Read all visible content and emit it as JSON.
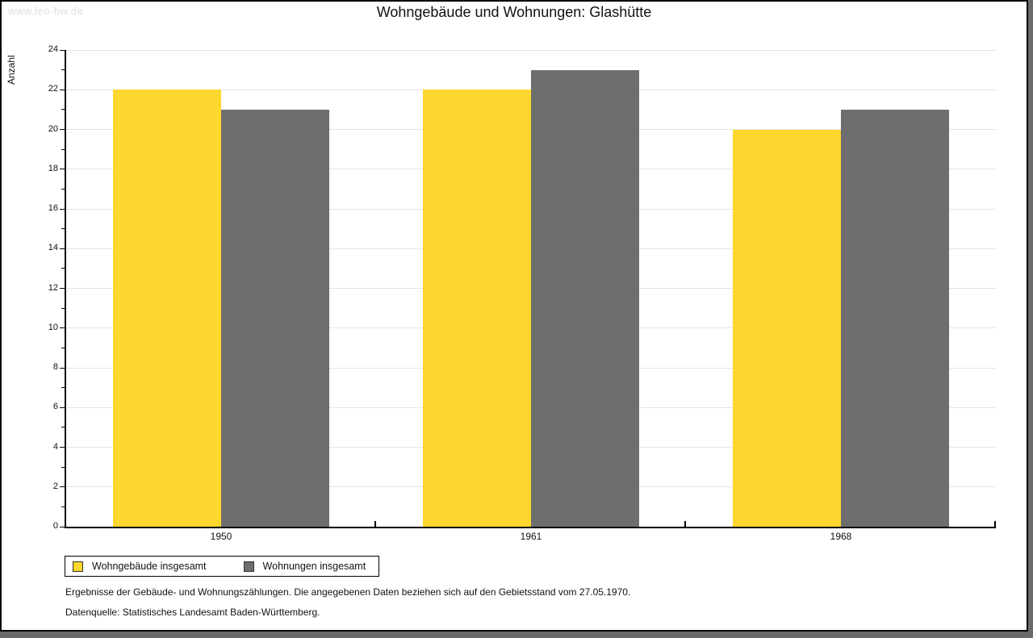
{
  "page": {
    "watermark": "www.leo-bw.de",
    "title": "Wohngebäude und Wohnungen: Glashütte",
    "background_color": "#6B6B6B",
    "canvas_color": "#FFFFFF"
  },
  "chart_data": {
    "type": "bar",
    "title": "Wohngebäude und Wohnungen: Glashütte",
    "categories": [
      "1950",
      "1961",
      "1968"
    ],
    "series": [
      {
        "name": "Wohngebäude insgesamt",
        "color": "#FDD62E",
        "values": [
          22,
          22,
          20
        ]
      },
      {
        "name": "Wohnungen insgesamt",
        "color": "#6E6E6E",
        "values": [
          21,
          23,
          21
        ]
      }
    ],
    "xlabel": "",
    "ylabel": "Anzahl",
    "ylim": [
      0,
      24
    ],
    "ytick_step": 2,
    "yminor_step": 1,
    "grid": true,
    "gridline_color": "#E4E4E4",
    "legend_position": "bottom-left"
  },
  "footnotes": {
    "line1": "Ergebnisse der Gebäude- und Wohnungszählungen. Die angegebenen Daten beziehen sich auf den Gebietsstand vom 27.05.1970.",
    "line2": "Datenquelle: Statistisches Landesamt Baden-Württemberg."
  }
}
